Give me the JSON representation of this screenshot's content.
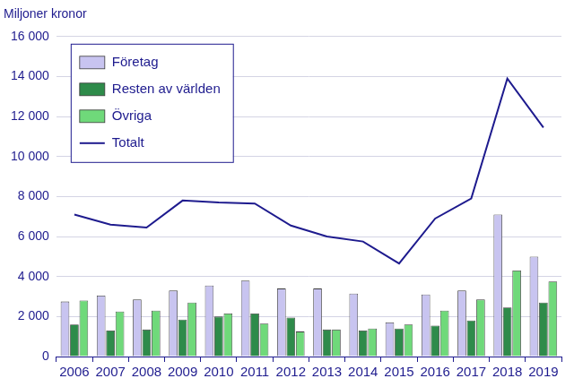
{
  "chart_data": {
    "type": "bar",
    "y_label": "Miljoner kronor",
    "categories": [
      "2006",
      "2007",
      "2008",
      "2009",
      "2010",
      "2011",
      "2012",
      "2013",
      "2014",
      "2015",
      "2016",
      "2017",
      "2018",
      "2019"
    ],
    "series": [
      {
        "name": "Företag",
        "color": "#c8c4f0",
        "values": [
          2750,
          3050,
          2850,
          3300,
          3550,
          3800,
          3400,
          3400,
          3150,
          1700,
          3100,
          3300,
          7100,
          5000
        ]
      },
      {
        "name": "Resten av världen",
        "color": "#2e8b4a",
        "values": [
          1600,
          1300,
          1350,
          1850,
          2000,
          2150,
          1950,
          1350,
          1300,
          1400,
          1550,
          1800,
          2450,
          2700
        ]
      },
      {
        "name": "Övriga",
        "color": "#6fd97a",
        "values": [
          2800,
          2250,
          2300,
          2700,
          2150,
          1650,
          1250,
          1350,
          1400,
          1600,
          2300,
          2850,
          4300,
          3750
        ]
      },
      {
        "name": "Totalt",
        "type": "line",
        "color": "#1e1b8e",
        "values": [
          7100,
          6600,
          6450,
          7800,
          7700,
          7650,
          6550,
          6000,
          5750,
          4650,
          6900,
          7900,
          13900,
          11450
        ]
      }
    ],
    "ylim": [
      0,
      16000
    ],
    "yticks": [
      0,
      {
        "value": 2000,
        "label": "2 000"
      },
      {
        "value": 4000,
        "label": "4 000"
      },
      {
        "value": 6000,
        "label": "6 000"
      },
      {
        "value": 8000,
        "label": "8 000"
      },
      {
        "value": 10000,
        "label": "10 000"
      },
      {
        "value": 12000,
        "label": "12 000"
      },
      {
        "value": 14000,
        "label": "14 000"
      },
      {
        "value": 16000,
        "label": "16 000"
      }
    ],
    "grid": true,
    "legend": "upper left"
  }
}
